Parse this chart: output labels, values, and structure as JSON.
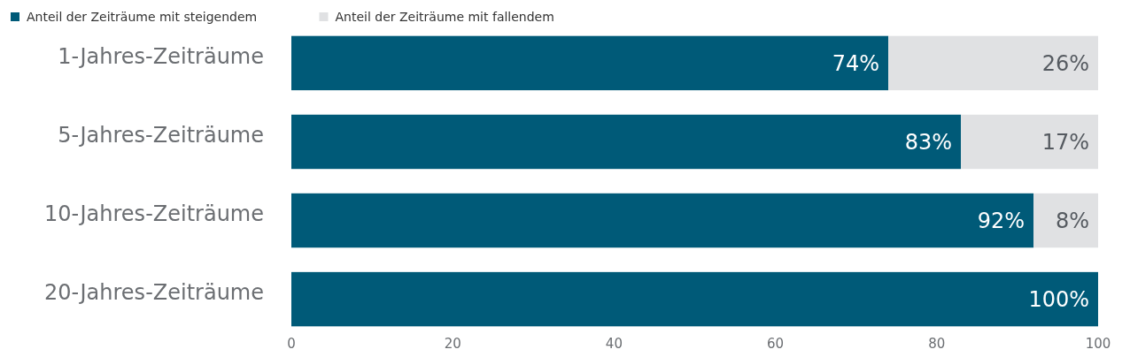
{
  "chart_data": {
    "type": "bar",
    "orientation": "horizontal",
    "stacked": true,
    "categories": [
      "1-Jahres-Zeiträume",
      "5-Jahres-Zeiträume",
      "10-Jahres-Zeiträume",
      "20-Jahres-Zeiträume"
    ],
    "series": [
      {
        "name": "Anteil der Zeiträume mit steigendem",
        "color": "#005a78",
        "values": [
          74,
          83,
          92,
          100
        ],
        "value_labels": [
          "74%",
          "83%",
          "92%",
          "100%"
        ]
      },
      {
        "name": "Anteil der Zeiträume mit fallendem",
        "color": "#e0e1e3",
        "values": [
          26,
          17,
          8,
          0
        ],
        "value_labels": [
          "26%",
          "17%",
          "8%",
          null
        ]
      }
    ],
    "xlim": [
      0,
      100
    ],
    "xticks": [
      0,
      20,
      40,
      60,
      80,
      100
    ],
    "grid": false,
    "legend": "top left"
  }
}
